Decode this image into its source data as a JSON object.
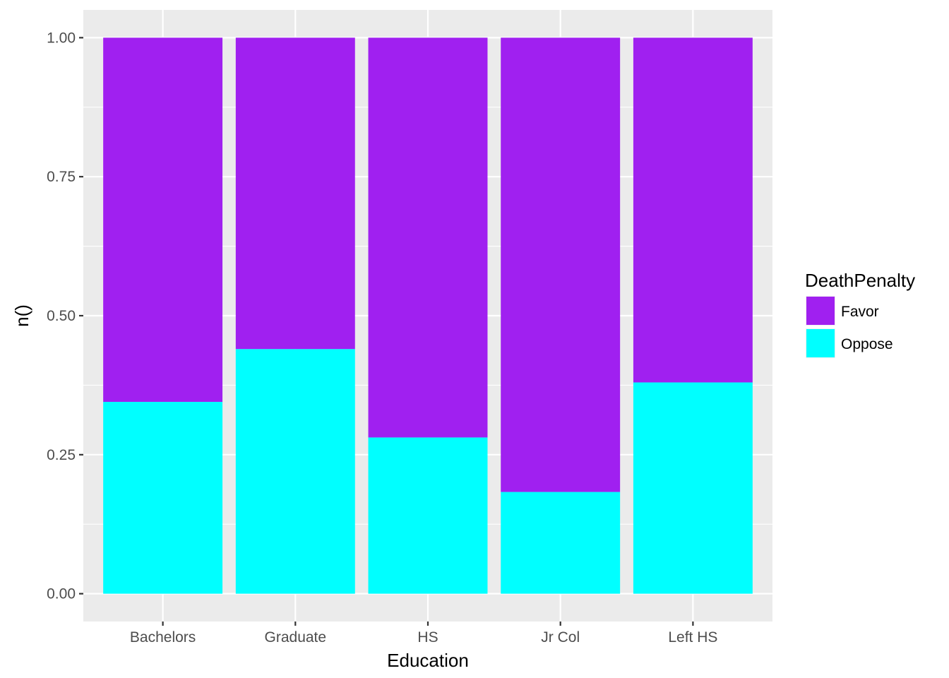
{
  "chart_data": {
    "type": "bar",
    "stacked": true,
    "categories": [
      "Bachelors",
      "Graduate",
      "HS",
      "Jr Col",
      "Left HS"
    ],
    "series": [
      {
        "name": "Favor",
        "color": "#a020f0",
        "values": [
          0.655,
          0.56,
          0.719,
          0.817,
          0.62
        ]
      },
      {
        "name": "Oppose",
        "color": "#00ffff",
        "values": [
          0.345,
          0.44,
          0.281,
          0.183,
          0.38
        ]
      }
    ],
    "xlabel": "Education",
    "ylabel": "n()",
    "ylim": [
      -0.05,
      1.05
    ],
    "yticks": [
      0,
      0.25,
      0.5,
      0.75,
      1
    ],
    "ytick_labels": [
      "0.00",
      "0.25",
      "0.50",
      "0.75",
      "1.00"
    ],
    "legend": {
      "title": "DeathPenalty",
      "position": "right"
    },
    "grid": true,
    "panel_background": "#ebebeb",
    "grid_color": "#ffffff"
  }
}
